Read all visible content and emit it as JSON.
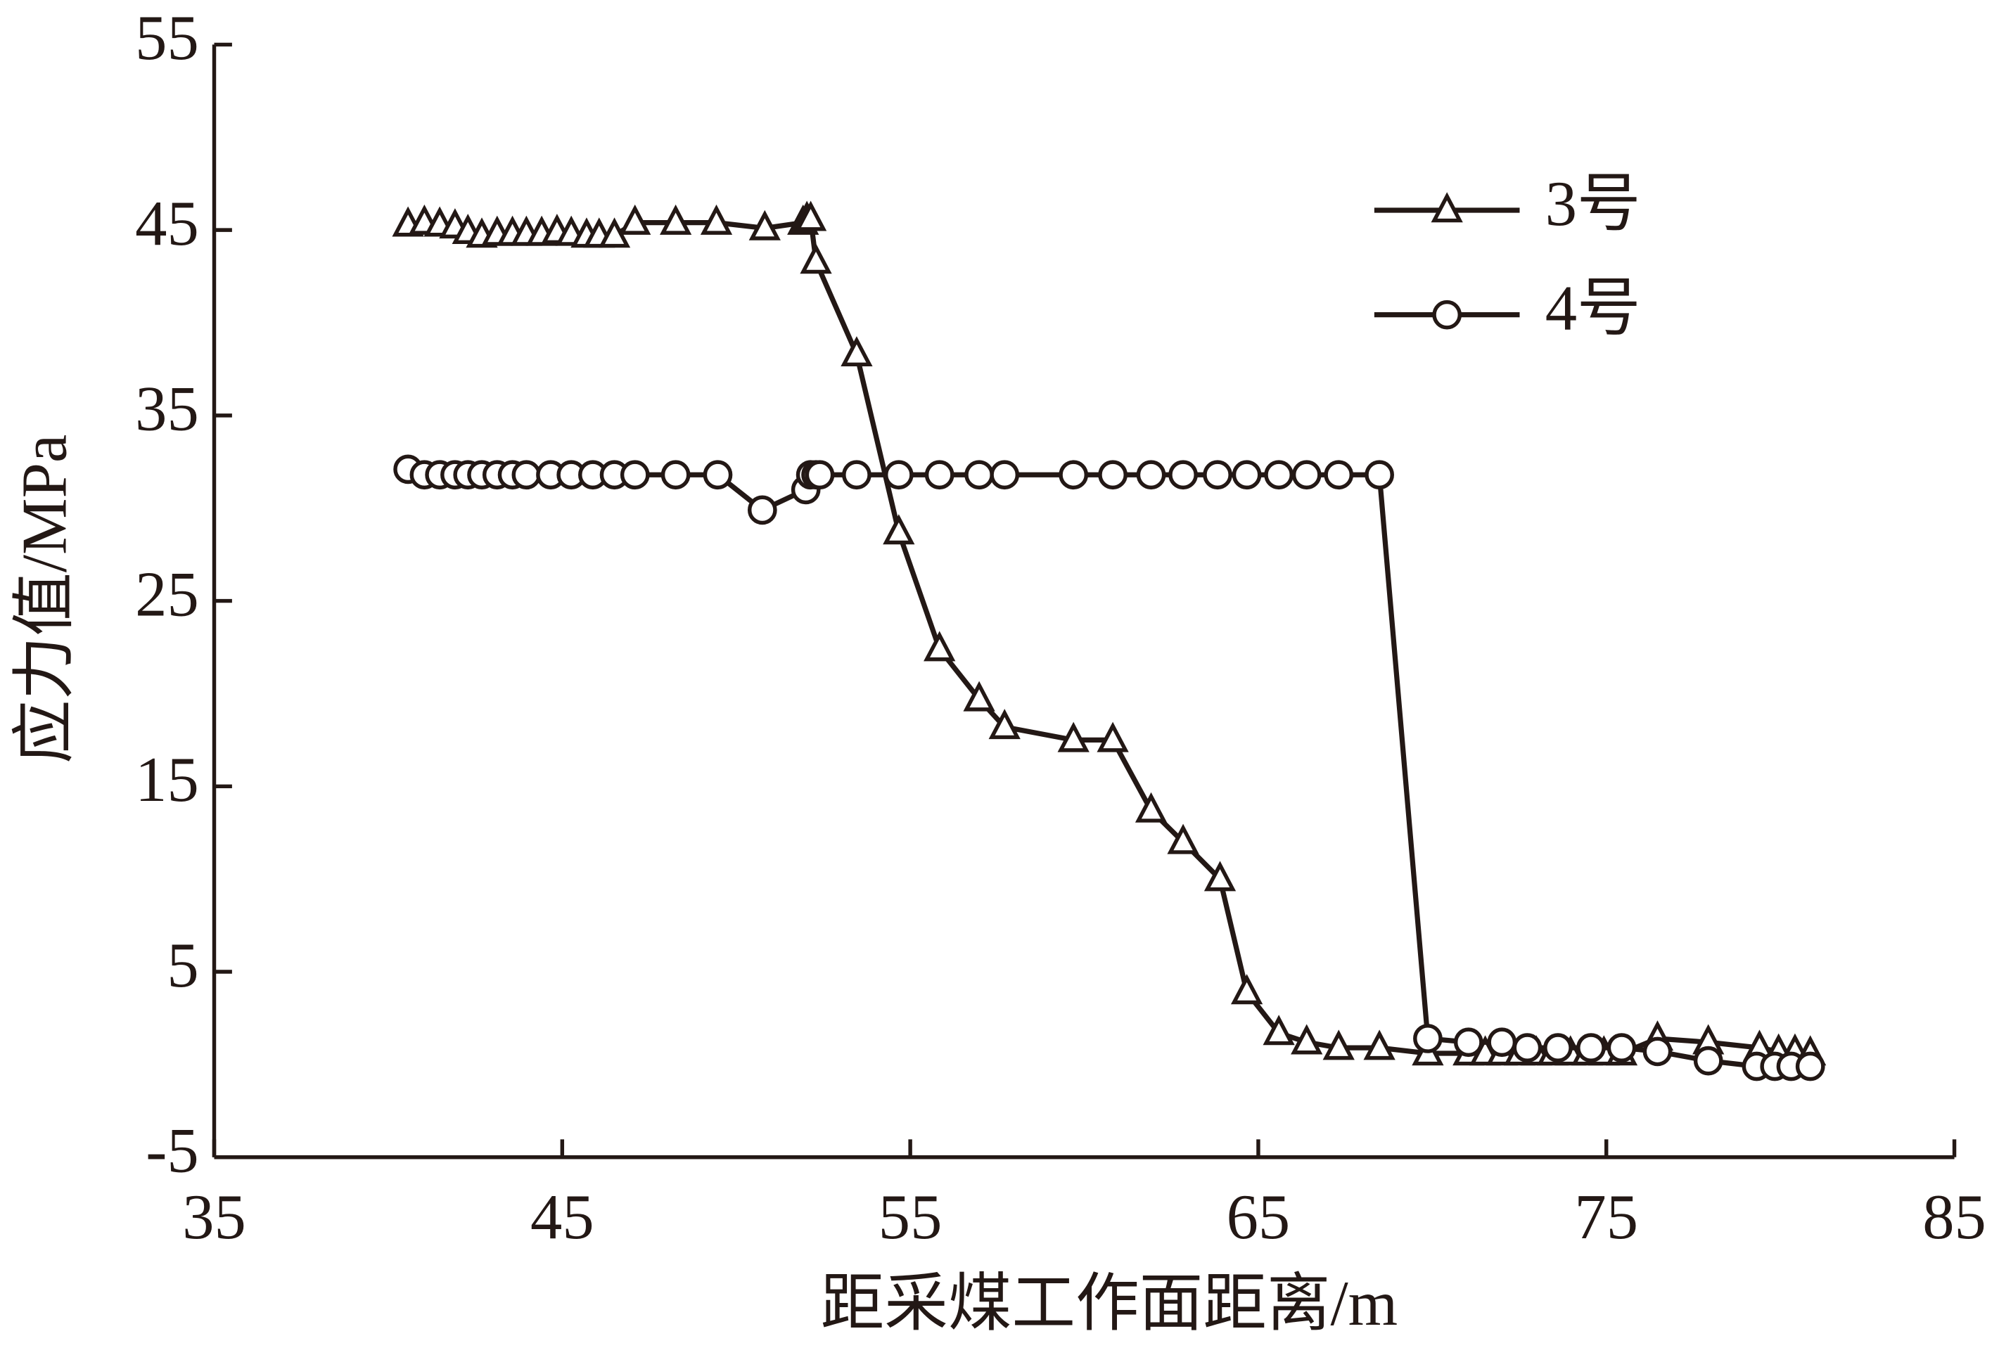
{
  "chart_data": {
    "type": "line",
    "xlabel": "距采煤工作面距离/m",
    "ylabel": "应力值/MPa",
    "xlim": [
      35,
      85
    ],
    "xticks": [
      35,
      45,
      55,
      65,
      75,
      85
    ],
    "ylim": [
      -5,
      55
    ],
    "yticks": [
      -5,
      5,
      15,
      25,
      35,
      45,
      55
    ],
    "legend": "upper right",
    "series": [
      {
        "name": "3号",
        "color": "#231815",
        "marker": "triangle",
        "x": [
          40.57,
          41.04,
          41.48,
          41.92,
          42.29,
          42.69,
          43.13,
          43.57,
          43.97,
          44.41,
          44.85,
          45.26,
          45.7,
          46.06,
          46.5,
          47.09,
          48.26,
          49.43,
          50.82,
          51.92,
          52.03,
          52.14,
          52.29,
          53.46,
          54.67,
          55.84,
          56.98,
          57.71,
          59.69,
          60.82,
          61.92,
          62.84,
          63.9,
          64.67,
          65.59,
          66.39,
          67.31,
          68.48,
          69.87,
          71.04,
          71.52,
          72.0,
          72.51,
          72.99,
          73.46,
          73.97,
          74.45,
          74.93,
          75.44,
          76.47,
          77.93,
          79.4,
          79.95,
          80.42,
          80.86
        ],
        "values": [
          45.3,
          45.4,
          45.3,
          45.2,
          44.9,
          44.7,
          44.8,
          44.8,
          44.8,
          44.8,
          44.9,
          44.8,
          44.7,
          44.7,
          44.7,
          45.4,
          45.4,
          45.4,
          45.1,
          45.4,
          45.6,
          45.6,
          43.3,
          38.3,
          28.7,
          22.4,
          19.7,
          18.2,
          17.5,
          17.5,
          13.7,
          12.0,
          10.0,
          3.9,
          1.7,
          1.2,
          0.9,
          0.9,
          0.6,
          0.6,
          0.6,
          0.6,
          0.6,
          0.6,
          0.6,
          0.6,
          0.6,
          0.6,
          0.6,
          1.4,
          1.2,
          0.9,
          0.7,
          0.7,
          0.6
        ]
      },
      {
        "name": "4号",
        "color": "#231815",
        "marker": "circle",
        "x": [
          40.57,
          41.04,
          41.48,
          41.92,
          42.29,
          42.69,
          43.13,
          43.57,
          43.97,
          44.67,
          45.26,
          45.88,
          46.5,
          47.09,
          48.26,
          49.47,
          50.75,
          52.0,
          52.14,
          52.29,
          52.4,
          53.46,
          54.67,
          55.84,
          56.98,
          57.71,
          59.69,
          60.82,
          61.92,
          62.84,
          63.83,
          64.67,
          65.59,
          66.39,
          67.31,
          68.48,
          69.87,
          71.04,
          72.0,
          72.73,
          73.61,
          74.56,
          75.44,
          76.47,
          77.93,
          79.32,
          79.84,
          80.31,
          80.86
        ],
        "values": [
          32.1,
          31.8,
          31.8,
          31.8,
          31.8,
          31.8,
          31.8,
          31.8,
          31.8,
          31.8,
          31.8,
          31.8,
          31.8,
          31.8,
          31.8,
          31.8,
          29.9,
          31.0,
          31.8,
          31.8,
          31.8,
          31.8,
          31.8,
          31.8,
          31.8,
          31.8,
          31.8,
          31.8,
          31.8,
          31.8,
          31.8,
          31.8,
          31.8,
          31.8,
          31.8,
          31.8,
          1.4,
          1.2,
          1.2,
          0.9,
          0.9,
          0.9,
          0.9,
          0.7,
          0.2,
          -0.1,
          -0.1,
          -0.1,
          -0.1
        ]
      }
    ]
  }
}
